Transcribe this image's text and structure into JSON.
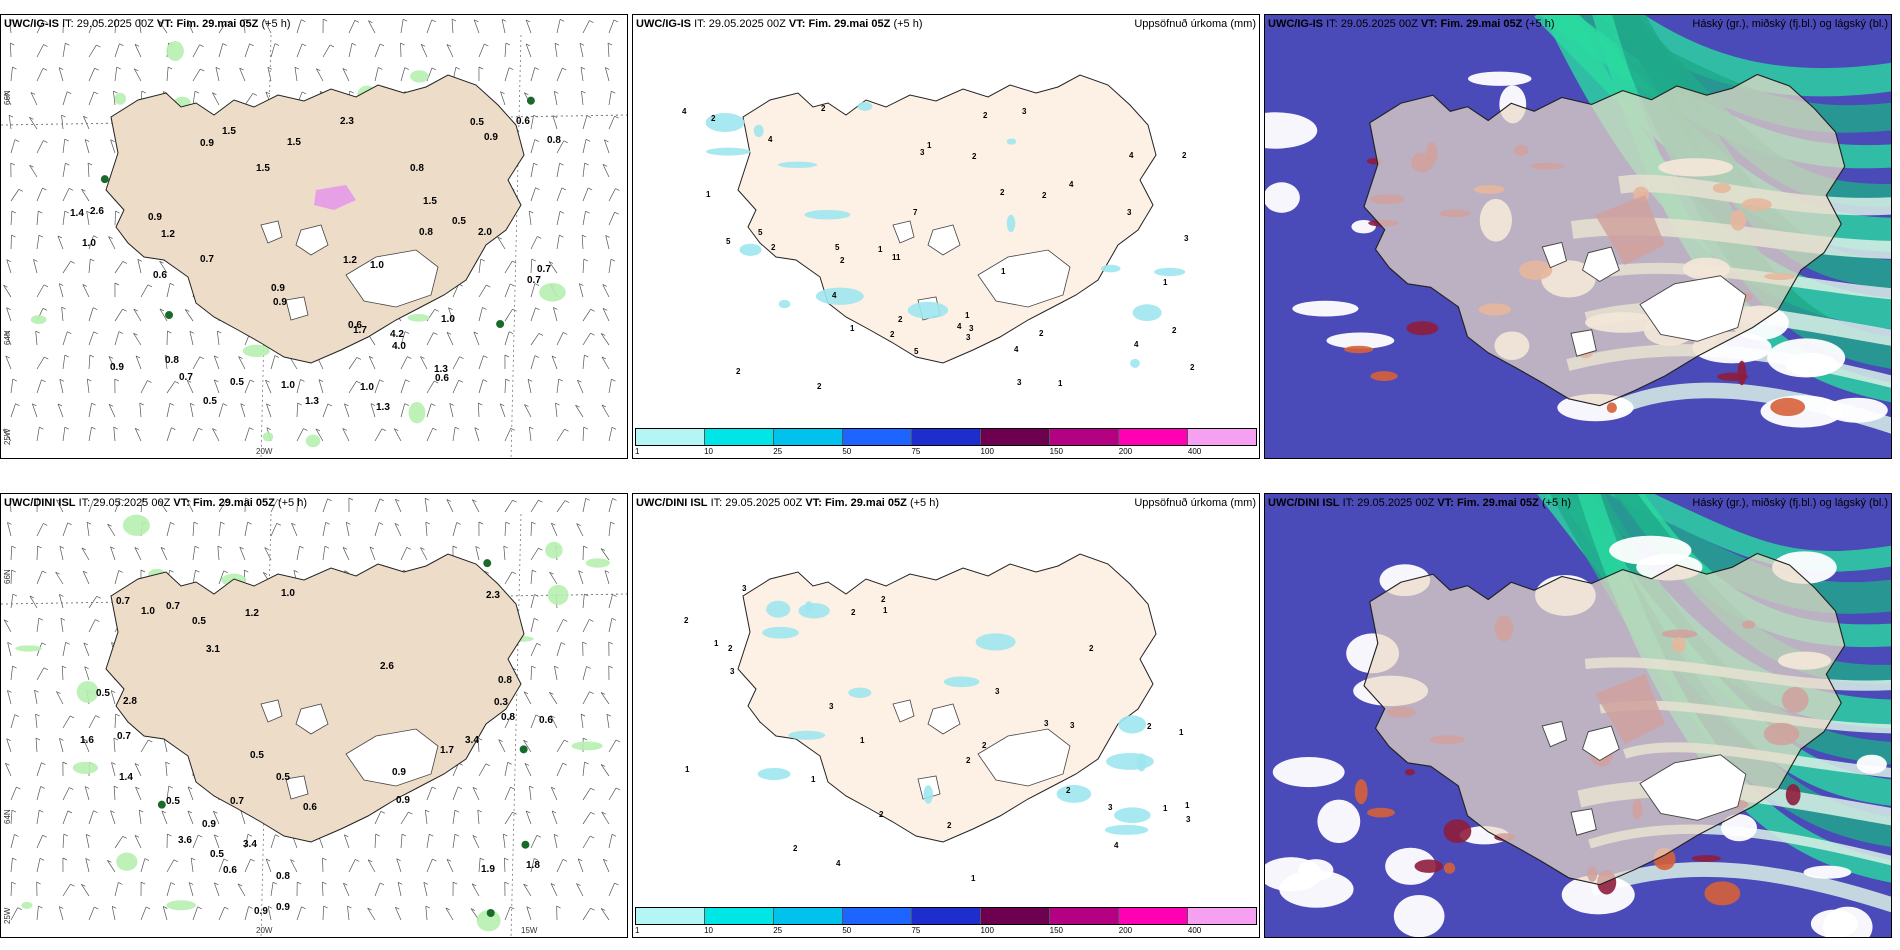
{
  "panels": [
    {
      "id": "top-wind",
      "source": "UWC/IG-IS",
      "it_label": "IT:",
      "it": "29.05.2025 00Z",
      "vt_label": "VT:",
      "vt": "Fim. 29.mai 05Z",
      "lead": "(+5 h)",
      "right_label": "",
      "kind": "wind",
      "ax_left": [
        "66N",
        "64N",
        "25W"
      ],
      "ax_bottom": [
        "20W"
      ],
      "values": [
        "1.3",
        "0.9",
        "0.8",
        "0.9",
        "0.5",
        "1.0",
        "0.7",
        "0.7",
        "0.9",
        "0.7",
        "0.9",
        "1.4",
        "0.9",
        "0.6",
        "0.8",
        "0.5",
        "1.0",
        "0.9",
        "1.0",
        "2.0",
        "1.3",
        "1.7",
        "0.5",
        "0.6",
        "1.0",
        "1.5",
        "0.6",
        "1.2",
        "1.3",
        "1.5",
        "4.0",
        "0.6",
        "0.8",
        "0.5",
        "1.5",
        "1.0",
        "2.3",
        "2.6",
        "0.7",
        "4.2",
        "1.5",
        "1.2",
        "0.8"
      ]
    },
    {
      "id": "top-precip",
      "source": "UWC/IG-IS",
      "it_label": "IT:",
      "it": "29.05.2025 00Z",
      "vt_label": "VT:",
      "vt": "Fim. 29.mai 05Z",
      "lead": "(+5 h)",
      "right_label": "Uppsöfnuð úrkoma (mm)",
      "kind": "precip",
      "values": [
        "4",
        "2",
        "1",
        "2",
        "2",
        "2",
        "1",
        "2",
        "4",
        "4",
        "5",
        "5",
        "3",
        "4",
        "2",
        "2",
        "3",
        "4",
        "1",
        "2",
        "2",
        "3",
        "4",
        "2",
        "2",
        "3",
        "1",
        "1",
        "2",
        "3",
        "3",
        "3",
        "2",
        "1",
        "2",
        "4",
        "7",
        "2",
        "1",
        "1",
        "2",
        "5",
        "4",
        "11",
        "5"
      ],
      "colorbar": {
        "labels": [
          "1",
          "10",
          "25",
          "50",
          "75",
          "100",
          "150",
          "200",
          "400"
        ],
        "colors": [
          "#b4f5f5",
          "#00e6e6",
          "#00c2ec",
          "#1e64ff",
          "#1e2ecc",
          "#6e0050",
          "#b40082",
          "#ff00b4",
          "#f5a0f0"
        ]
      }
    },
    {
      "id": "top-cloud",
      "source": "UWC/IG-IS",
      "it_label": "IT:",
      "it": "29.05.2025 00Z",
      "vt_label": "VT:",
      "vt": "Fim. 29.mai 05Z",
      "lead": "(+5 h)",
      "right_label": "Háský (gr.), miðský (fj.bl.) og lágský (bl.)",
      "kind": "cloud"
    },
    {
      "id": "bottom-wind",
      "source": "UWC/DINI ISL",
      "it_label": "IT:",
      "it": "29.05.2025 00Z",
      "vt_label": "VT:",
      "vt": "Fim. 29.mai 05Z",
      "lead": "(+5 h)",
      "right_label": "",
      "kind": "wind",
      "ax_left": [
        "66N",
        "64N",
        "25W"
      ],
      "ax_bottom": [
        "20W",
        "15W"
      ],
      "values": [
        "0.7",
        "0.5",
        "0.5",
        "0.5",
        "0.6",
        "0.8",
        "0.5",
        "3.4",
        "2.6",
        "0.8",
        "3.6",
        "1.9",
        "0.7",
        "0.9",
        "3.4",
        "0.9",
        "0.9",
        "0.8",
        "1.0",
        "2.8",
        "0.9",
        "1.7",
        "3.1",
        "0.9",
        "0.6",
        "1.4",
        "1.6",
        "1.2",
        "1.8",
        "2.3",
        "0.6",
        "0.5",
        "0.5",
        "1.0",
        "0.3",
        "0.7",
        "0.7"
      ]
    },
    {
      "id": "bottom-precip",
      "source": "UWC/DINI ISL",
      "it_label": "IT:",
      "it": "29.05.2025 00Z",
      "vt_label": "VT:",
      "vt": "Fim. 29.mai 05Z",
      "lead": "(+5 h)",
      "right_label": "Uppsöfnuð úrkoma (mm)",
      "kind": "precip",
      "values": [
        "2",
        "1",
        "2",
        "2",
        "1",
        "1",
        "2",
        "1",
        "2",
        "4",
        "3",
        "3",
        "1",
        "2",
        "2",
        "1",
        "3",
        "2",
        "2",
        "1",
        "3",
        "3",
        "4",
        "3",
        "2",
        "1",
        "2",
        "3",
        "3",
        "1",
        "2"
      ],
      "colorbar": {
        "labels": [
          "1",
          "10",
          "25",
          "50",
          "75",
          "100",
          "150",
          "200",
          "400"
        ],
        "colors": [
          "#b4f5f5",
          "#00e6e6",
          "#00c2ec",
          "#1e64ff",
          "#1e2ecc",
          "#6e0050",
          "#b40082",
          "#ff00b4",
          "#f5a0f0"
        ]
      }
    },
    {
      "id": "bottom-cloud",
      "source": "UWC/DINI ISL",
      "it_label": "IT:",
      "it": "29.05.2025 00Z",
      "vt_label": "VT:",
      "vt": "Fim. 29.mai 05Z",
      "lead": "(+5 h)",
      "right_label": "Háský (gr.), miðský (fj.bl.) og lágský (bl.)",
      "kind": "cloud"
    }
  ]
}
